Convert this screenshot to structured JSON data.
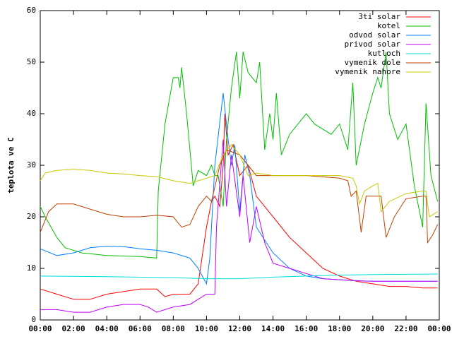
{
  "chart_data": {
    "type": "line",
    "y_label": "teplota ve C",
    "xlim": [
      0,
      24
    ],
    "ylim": [
      0,
      60
    ],
    "xticks": [
      {
        "value": 0,
        "label": "00:00"
      },
      {
        "value": 2,
        "label": "02:00"
      },
      {
        "value": 4,
        "label": "04:00"
      },
      {
        "value": 6,
        "label": "06:00"
      },
      {
        "value": 8,
        "label": "08:00"
      },
      {
        "value": 10,
        "label": "10:00"
      },
      {
        "value": 12,
        "label": "12:00"
      },
      {
        "value": 14,
        "label": "14:00"
      },
      {
        "value": 16,
        "label": "16:00"
      },
      {
        "value": 18,
        "label": "18:00"
      },
      {
        "value": 20,
        "label": "20:00"
      },
      {
        "value": 22,
        "label": "22:00"
      },
      {
        "value": 24,
        "label": "00:00"
      }
    ],
    "yticks": [
      0,
      10,
      20,
      30,
      40,
      50,
      60
    ],
    "legend": "top-right",
    "series": [
      {
        "name": "3ti solar",
        "color": "#ff0000",
        "x": [
          0,
          1,
          2,
          3,
          4,
          5,
          6,
          7,
          7.5,
          8,
          9,
          9.5,
          10,
          10.3,
          10.5,
          10.8,
          11,
          11.1,
          11.3,
          11.6,
          12,
          12.5,
          13,
          14,
          15,
          16,
          17,
          18,
          19,
          20,
          21,
          22,
          23,
          23.9
        ],
        "values": [
          6,
          5,
          4,
          4,
          5,
          5.5,
          6,
          6,
          4.5,
          5,
          5,
          7,
          18,
          23,
          24,
          22,
          30,
          40,
          32,
          34,
          28,
          30,
          24,
          20,
          16,
          13,
          10,
          8.5,
          7.5,
          7,
          6.5,
          6.5,
          6.2,
          6.2
        ]
      },
      {
        "name": "kotel",
        "color": "#00c000",
        "x": [
          0,
          0.3,
          1,
          1.5,
          2.5,
          4,
          6,
          7,
          7.1,
          7.5,
          8,
          8.3,
          8.4,
          8.5,
          8.8,
          9.2,
          9.5,
          10,
          10.3,
          10.5,
          10.7,
          11,
          11.2,
          11.5,
          11.8,
          12,
          12.2,
          12.5,
          13,
          13.2,
          13.5,
          13.8,
          14,
          14.2,
          14.5,
          15,
          15.5,
          16,
          16.5,
          17,
          17.5,
          18,
          18.5,
          18.8,
          19,
          19.5,
          20,
          20.3,
          20.5,
          20.8,
          21,
          21.5,
          22,
          22.5,
          23,
          23.2,
          23.5,
          23.9
        ],
        "values": [
          22,
          20,
          16,
          14,
          13,
          12.5,
          12.3,
          12,
          25,
          38,
          47,
          47,
          45,
          49,
          40,
          26,
          29,
          28,
          30,
          28,
          28,
          22,
          35,
          45,
          52,
          43,
          52,
          48,
          46,
          50,
          33,
          40,
          35,
          44,
          32,
          36,
          38,
          40,
          38,
          37,
          36,
          38,
          33,
          46,
          30,
          38,
          44,
          47,
          45,
          52,
          40,
          35,
          38,
          26,
          18,
          42,
          28,
          23
        ]
      },
      {
        "name": "odvod solar",
        "color": "#0080ff",
        "x": [
          0,
          1,
          2,
          3,
          4,
          5,
          6,
          7,
          8,
          9,
          9.5,
          10,
          10.2,
          10.5,
          11,
          11.3,
          11.5,
          11.7,
          12,
          12.3,
          12.6,
          13,
          14,
          15,
          16,
          17,
          18,
          19,
          20,
          22,
          23.9
        ],
        "values": [
          13.8,
          12.5,
          13,
          14,
          14.3,
          14.2,
          13.8,
          13.5,
          13,
          12,
          10,
          7,
          12,
          30,
          44,
          35,
          30,
          34,
          21,
          32,
          28,
          18,
          13,
          10,
          8.5,
          8,
          7.8,
          7.6,
          7.5,
          7.5,
          7.5
        ]
      },
      {
        "name": "privod solar",
        "color": "#c000ff",
        "x": [
          0,
          1,
          2,
          3,
          4,
          5,
          6,
          6.5,
          7,
          7.5,
          8,
          9,
          10,
          10.5,
          10.6,
          11,
          11.2,
          11.5,
          12,
          12.2,
          12.6,
          13,
          13.5,
          14,
          15,
          16,
          17,
          18,
          19,
          20,
          23.9
        ],
        "values": [
          2,
          2,
          1.5,
          1.5,
          2.5,
          3,
          3,
          2.5,
          1.5,
          2,
          2.5,
          3,
          5,
          5,
          18,
          35,
          22,
          32,
          20,
          28,
          15,
          22,
          15,
          11,
          10,
          9,
          8,
          7.8,
          7.6,
          7.5,
          7.5
        ]
      },
      {
        "name": "kutloch",
        "color": "#00dddd",
        "x": [
          0,
          4,
          8,
          10,
          12,
          14,
          16,
          18,
          20,
          23.9
        ],
        "values": [
          8.5,
          8.4,
          8.2,
          8,
          8,
          8.3,
          8.5,
          8.7,
          8.8,
          8.9
        ]
      },
      {
        "name": "vymenik dole",
        "color": "#c04000",
        "x": [
          0,
          0.5,
          1,
          2,
          3,
          4,
          5,
          6,
          7,
          8,
          8.5,
          9,
          9.5,
          10,
          10.3,
          10.8,
          11.2,
          12,
          12.5,
          13,
          14,
          16,
          18,
          18.5,
          18.7,
          19,
          19.3,
          19.6,
          20.5,
          20.8,
          21.3,
          22,
          23,
          23.2,
          23.3,
          23.6,
          23.9
        ],
        "values": [
          17,
          21,
          22.5,
          22.5,
          21.5,
          20.5,
          20,
          20,
          20.3,
          20,
          18,
          18.5,
          22,
          24,
          23,
          30,
          33,
          32,
          30,
          28,
          28,
          28,
          27.5,
          27,
          24,
          25,
          17,
          24,
          24,
          16,
          20,
          23.5,
          24,
          24,
          15,
          16.5,
          18.5
        ]
      },
      {
        "name": "vymenik nahore",
        "color": "#c8c800",
        "x": [
          0,
          0.3,
          1,
          2,
          3,
          4,
          5,
          6,
          7,
          8,
          9,
          9.5,
          10,
          10.5,
          11,
          11.5,
          12,
          12.5,
          13,
          14,
          16,
          18,
          18.8,
          19,
          19.2,
          19.5,
          20,
          20.3,
          20.5,
          21,
          22,
          23,
          23.2,
          23.4,
          23.9
        ],
        "values": [
          27,
          28.5,
          29,
          29.2,
          29,
          28.5,
          28.3,
          28,
          27.8,
          27,
          26.5,
          27,
          27.5,
          28,
          32,
          34,
          32,
          28,
          28.5,
          28,
          28,
          28,
          27.5,
          26,
          22.5,
          25,
          26,
          26.5,
          21,
          23,
          24.5,
          25,
          25,
          20,
          21
        ]
      }
    ]
  }
}
